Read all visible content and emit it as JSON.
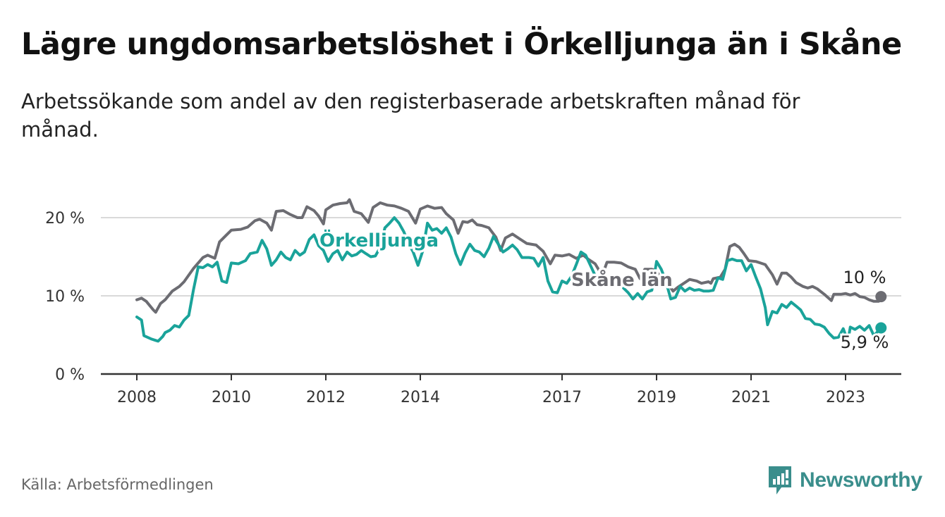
{
  "title": "Lägre ungdomsarbetslöshet i Örkelljunga än i Skåne",
  "subtitle": "Arbetssökande som andel av den registerbaserade arbetskraften månad för månad.",
  "source": "Källa: Arbetsförmedlingen",
  "brand": "Newsworthy",
  "colors": {
    "orkelljunga": "#1aa39a",
    "skane": "#6c6c72",
    "grid": "#d9d9d9",
    "axis": "#333333",
    "brand": "#3a8e8c"
  },
  "chart_data": {
    "type": "line",
    "title": "Lägre ungdomsarbetslöshet i Örkelljunga än i Skåne",
    "xlabel": "",
    "ylabel": "",
    "ylim": [
      0,
      25
    ],
    "xlim": [
      2007.6,
      2024.2
    ],
    "y_ticks": [
      {
        "value": 0,
        "label": "0 %"
      },
      {
        "value": 10,
        "label": "10 %"
      },
      {
        "value": 20,
        "label": "20 %"
      }
    ],
    "x_ticks": [
      {
        "value": 2008,
        "label": "2008"
      },
      {
        "value": 2010,
        "label": "2010"
      },
      {
        "value": 2012,
        "label": "2012"
      },
      {
        "value": 2014,
        "label": "2014"
      },
      {
        "value": 2017,
        "label": "2017"
      },
      {
        "value": 2019,
        "label": "2019"
      },
      {
        "value": 2021,
        "label": "2021"
      },
      {
        "value": 2023,
        "label": "2023"
      }
    ],
    "series": [
      {
        "name": "Skåne län",
        "color": "#6c6c72",
        "inline_label": "Skåne län",
        "end_label": "10 %",
        "points": [
          [
            2008.0,
            9.5
          ],
          [
            2008.1,
            9.7
          ],
          [
            2008.2,
            9.3
          ],
          [
            2008.35,
            8.2
          ],
          [
            2008.4,
            7.9
          ],
          [
            2008.5,
            9.0
          ],
          [
            2008.6,
            9.5
          ],
          [
            2008.75,
            10.6
          ],
          [
            2008.9,
            11.2
          ],
          [
            2009.0,
            11.8
          ],
          [
            2009.2,
            13.5
          ],
          [
            2009.4,
            14.9
          ],
          [
            2009.5,
            15.2
          ],
          [
            2009.65,
            14.8
          ],
          [
            2009.75,
            16.9
          ],
          [
            2009.9,
            17.8
          ],
          [
            2010.0,
            18.4
          ],
          [
            2010.2,
            18.5
          ],
          [
            2010.35,
            18.8
          ],
          [
            2010.5,
            19.6
          ],
          [
            2010.6,
            19.8
          ],
          [
            2010.75,
            19.3
          ],
          [
            2010.85,
            18.4
          ],
          [
            2010.95,
            20.8
          ],
          [
            2011.1,
            20.9
          ],
          [
            2011.25,
            20.4
          ],
          [
            2011.4,
            20.0
          ],
          [
            2011.5,
            20.0
          ],
          [
            2011.6,
            21.4
          ],
          [
            2011.75,
            20.9
          ],
          [
            2011.85,
            20.2
          ],
          [
            2011.95,
            19.2
          ],
          [
            2012.0,
            21.0
          ],
          [
            2012.15,
            21.6
          ],
          [
            2012.3,
            21.8
          ],
          [
            2012.45,
            21.9
          ],
          [
            2012.5,
            22.3
          ],
          [
            2012.6,
            20.8
          ],
          [
            2012.75,
            20.5
          ],
          [
            2012.9,
            19.4
          ],
          [
            2013.0,
            21.3
          ],
          [
            2013.15,
            21.9
          ],
          [
            2013.3,
            21.6
          ],
          [
            2013.45,
            21.5
          ],
          [
            2013.6,
            21.2
          ],
          [
            2013.75,
            20.8
          ],
          [
            2013.9,
            19.3
          ],
          [
            2014.0,
            21.1
          ],
          [
            2014.15,
            21.5
          ],
          [
            2014.3,
            21.2
          ],
          [
            2014.45,
            21.3
          ],
          [
            2014.55,
            20.5
          ],
          [
            2014.7,
            19.7
          ],
          [
            2014.8,
            18.0
          ],
          [
            2014.9,
            19.5
          ],
          [
            2015.0,
            19.4
          ],
          [
            2015.1,
            19.7
          ],
          [
            2015.2,
            19.1
          ],
          [
            2015.3,
            19.0
          ],
          [
            2015.45,
            18.7
          ],
          [
            2015.6,
            17.5
          ],
          [
            2015.7,
            15.8
          ],
          [
            2015.8,
            17.4
          ],
          [
            2015.95,
            17.9
          ],
          [
            2016.1,
            17.3
          ],
          [
            2016.25,
            16.7
          ],
          [
            2016.45,
            16.5
          ],
          [
            2016.6,
            15.7
          ],
          [
            2016.75,
            14.1
          ],
          [
            2016.85,
            15.2
          ],
          [
            2017.0,
            15.1
          ],
          [
            2017.15,
            15.3
          ],
          [
            2017.3,
            14.8
          ],
          [
            2017.45,
            15.2
          ],
          [
            2017.55,
            14.7
          ],
          [
            2017.7,
            14.1
          ],
          [
            2017.85,
            12.6
          ],
          [
            2017.95,
            14.3
          ],
          [
            2018.1,
            14.3
          ],
          [
            2018.25,
            14.2
          ],
          [
            2018.4,
            13.7
          ],
          [
            2018.55,
            13.4
          ],
          [
            2018.65,
            12.2
          ],
          [
            2018.75,
            13.4
          ],
          [
            2018.9,
            13.4
          ],
          [
            2019.0,
            13.2
          ],
          [
            2019.1,
            12.0
          ],
          [
            2019.2,
            11.9
          ],
          [
            2019.35,
            10.6
          ],
          [
            2019.45,
            11.1
          ],
          [
            2019.55,
            11.5
          ],
          [
            2019.7,
            12.1
          ],
          [
            2019.85,
            11.9
          ],
          [
            2019.95,
            11.6
          ],
          [
            2020.1,
            11.8
          ],
          [
            2020.15,
            11.6
          ],
          [
            2020.2,
            12.2
          ],
          [
            2020.35,
            12.4
          ],
          [
            2020.45,
            13.4
          ],
          [
            2020.55,
            16.3
          ],
          [
            2020.65,
            16.6
          ],
          [
            2020.75,
            16.2
          ],
          [
            2020.85,
            15.4
          ],
          [
            2020.95,
            14.5
          ],
          [
            2021.1,
            14.4
          ],
          [
            2021.2,
            14.2
          ],
          [
            2021.3,
            14.0
          ],
          [
            2021.45,
            12.7
          ],
          [
            2021.55,
            11.5
          ],
          [
            2021.65,
            12.9
          ],
          [
            2021.75,
            12.9
          ],
          [
            2021.85,
            12.4
          ],
          [
            2021.95,
            11.7
          ],
          [
            2022.1,
            11.2
          ],
          [
            2022.2,
            11.0
          ],
          [
            2022.3,
            11.2
          ],
          [
            2022.4,
            10.9
          ],
          [
            2022.55,
            10.2
          ],
          [
            2022.7,
            9.4
          ],
          [
            2022.75,
            10.2
          ],
          [
            2022.9,
            10.2
          ],
          [
            2023.0,
            10.3
          ],
          [
            2023.1,
            10.1
          ],
          [
            2023.2,
            10.3
          ],
          [
            2023.3,
            9.9
          ],
          [
            2023.4,
            9.8
          ],
          [
            2023.5,
            9.5
          ],
          [
            2023.6,
            9.3
          ],
          [
            2023.7,
            9.3
          ],
          [
            2023.75,
            9.9
          ]
        ]
      },
      {
        "name": "Örkelljunga",
        "color": "#1aa39a",
        "inline_label": "Örkelljunga",
        "end_label": "5,9 %",
        "points": [
          [
            2008.0,
            7.3
          ],
          [
            2008.1,
            6.9
          ],
          [
            2008.15,
            4.9
          ],
          [
            2008.3,
            4.5
          ],
          [
            2008.4,
            4.3
          ],
          [
            2008.45,
            4.2
          ],
          [
            2008.55,
            4.8
          ],
          [
            2008.6,
            5.3
          ],
          [
            2008.7,
            5.6
          ],
          [
            2008.8,
            6.2
          ],
          [
            2008.9,
            6.0
          ],
          [
            2009.0,
            6.9
          ],
          [
            2009.1,
            7.5
          ],
          [
            2009.2,
            10.8
          ],
          [
            2009.3,
            13.7
          ],
          [
            2009.4,
            13.6
          ],
          [
            2009.5,
            14.0
          ],
          [
            2009.6,
            13.7
          ],
          [
            2009.7,
            14.3
          ],
          [
            2009.8,
            11.9
          ],
          [
            2009.9,
            11.7
          ],
          [
            2010.0,
            14.2
          ],
          [
            2010.15,
            14.1
          ],
          [
            2010.3,
            14.5
          ],
          [
            2010.4,
            15.4
          ],
          [
            2010.55,
            15.6
          ],
          [
            2010.65,
            17.1
          ],
          [
            2010.75,
            16.0
          ],
          [
            2010.85,
            13.9
          ],
          [
            2010.95,
            14.6
          ],
          [
            2011.05,
            15.6
          ],
          [
            2011.15,
            14.9
          ],
          [
            2011.25,
            14.6
          ],
          [
            2011.35,
            15.8
          ],
          [
            2011.45,
            15.2
          ],
          [
            2011.55,
            15.6
          ],
          [
            2011.65,
            17.2
          ],
          [
            2011.75,
            17.8
          ],
          [
            2011.85,
            16.4
          ],
          [
            2011.95,
            15.8
          ],
          [
            2012.05,
            14.4
          ],
          [
            2012.15,
            15.4
          ],
          [
            2012.25,
            15.8
          ],
          [
            2012.35,
            14.6
          ],
          [
            2012.45,
            15.6
          ],
          [
            2012.55,
            15.1
          ],
          [
            2012.65,
            15.3
          ],
          [
            2012.75,
            15.8
          ],
          [
            2012.85,
            15.4
          ],
          [
            2012.95,
            15.0
          ],
          [
            2013.05,
            15.1
          ],
          [
            2013.15,
            16.2
          ],
          [
            2013.25,
            18.7
          ],
          [
            2013.35,
            19.3
          ],
          [
            2013.45,
            20.0
          ],
          [
            2013.55,
            19.3
          ],
          [
            2013.65,
            18.2
          ],
          [
            2013.75,
            16.7
          ],
          [
            2013.85,
            15.6
          ],
          [
            2013.95,
            13.9
          ],
          [
            2014.05,
            15.7
          ],
          [
            2014.15,
            19.3
          ],
          [
            2014.25,
            18.4
          ],
          [
            2014.35,
            18.6
          ],
          [
            2014.45,
            18.0
          ],
          [
            2014.55,
            18.7
          ],
          [
            2014.65,
            17.5
          ],
          [
            2014.75,
            15.4
          ],
          [
            2014.85,
            14.0
          ],
          [
            2014.95,
            15.5
          ],
          [
            2015.05,
            16.6
          ],
          [
            2015.15,
            15.8
          ],
          [
            2015.25,
            15.6
          ],
          [
            2015.35,
            15.0
          ],
          [
            2015.45,
            16.1
          ],
          [
            2015.55,
            17.6
          ],
          [
            2015.65,
            16.6
          ],
          [
            2015.75,
            15.6
          ],
          [
            2015.85,
            16.0
          ],
          [
            2015.95,
            16.5
          ],
          [
            2016.05,
            15.9
          ],
          [
            2016.15,
            14.9
          ],
          [
            2016.3,
            14.9
          ],
          [
            2016.4,
            14.8
          ],
          [
            2016.5,
            13.8
          ],
          [
            2016.6,
            14.9
          ],
          [
            2016.7,
            11.9
          ],
          [
            2016.8,
            10.5
          ],
          [
            2016.9,
            10.4
          ],
          [
            2017.0,
            11.9
          ],
          [
            2017.1,
            11.6
          ],
          [
            2017.2,
            12.5
          ],
          [
            2017.3,
            14.0
          ],
          [
            2017.4,
            15.6
          ],
          [
            2017.5,
            15.2
          ],
          [
            2017.6,
            13.9
          ],
          [
            2017.7,
            12.6
          ],
          [
            2018.2,
            12.3
          ],
          [
            2018.3,
            11.0
          ],
          [
            2018.4,
            10.4
          ],
          [
            2018.5,
            9.6
          ],
          [
            2018.6,
            10.3
          ],
          [
            2018.7,
            9.6
          ],
          [
            2018.8,
            10.5
          ],
          [
            2018.9,
            10.7
          ],
          [
            2019.0,
            14.4
          ],
          [
            2019.1,
            13.4
          ],
          [
            2019.2,
            11.8
          ],
          [
            2019.3,
            9.6
          ],
          [
            2019.4,
            9.8
          ],
          [
            2019.5,
            11.2
          ],
          [
            2019.6,
            10.6
          ],
          [
            2019.7,
            11.0
          ],
          [
            2019.8,
            10.7
          ],
          [
            2019.9,
            10.8
          ],
          [
            2020.0,
            10.6
          ],
          [
            2020.1,
            10.6
          ],
          [
            2020.2,
            10.7
          ],
          [
            2020.3,
            12.3
          ],
          [
            2020.4,
            12.1
          ],
          [
            2020.5,
            14.5
          ],
          [
            2020.6,
            14.7
          ],
          [
            2020.7,
            14.5
          ],
          [
            2020.8,
            14.5
          ],
          [
            2020.9,
            13.2
          ],
          [
            2021.0,
            14.0
          ],
          [
            2021.1,
            12.4
          ],
          [
            2021.2,
            10.9
          ],
          [
            2021.3,
            8.5
          ],
          [
            2021.35,
            6.3
          ],
          [
            2021.45,
            8.0
          ],
          [
            2021.55,
            7.8
          ],
          [
            2021.65,
            8.9
          ],
          [
            2021.75,
            8.5
          ],
          [
            2021.85,
            9.2
          ],
          [
            2021.95,
            8.7
          ],
          [
            2022.05,
            8.2
          ],
          [
            2022.15,
            7.1
          ],
          [
            2022.25,
            7.0
          ],
          [
            2022.35,
            6.4
          ],
          [
            2022.45,
            6.3
          ],
          [
            2022.55,
            6.0
          ],
          [
            2022.65,
            5.2
          ],
          [
            2022.75,
            4.6
          ],
          [
            2022.85,
            4.7
          ],
          [
            2022.95,
            5.8
          ],
          [
            2023.05,
            4.2
          ],
          [
            2023.1,
            6.0
          ],
          [
            2023.2,
            5.7
          ],
          [
            2023.3,
            6.1
          ],
          [
            2023.4,
            5.6
          ],
          [
            2023.5,
            6.2
          ],
          [
            2023.6,
            4.9
          ],
          [
            2023.75,
            5.9
          ]
        ]
      }
    ]
  }
}
